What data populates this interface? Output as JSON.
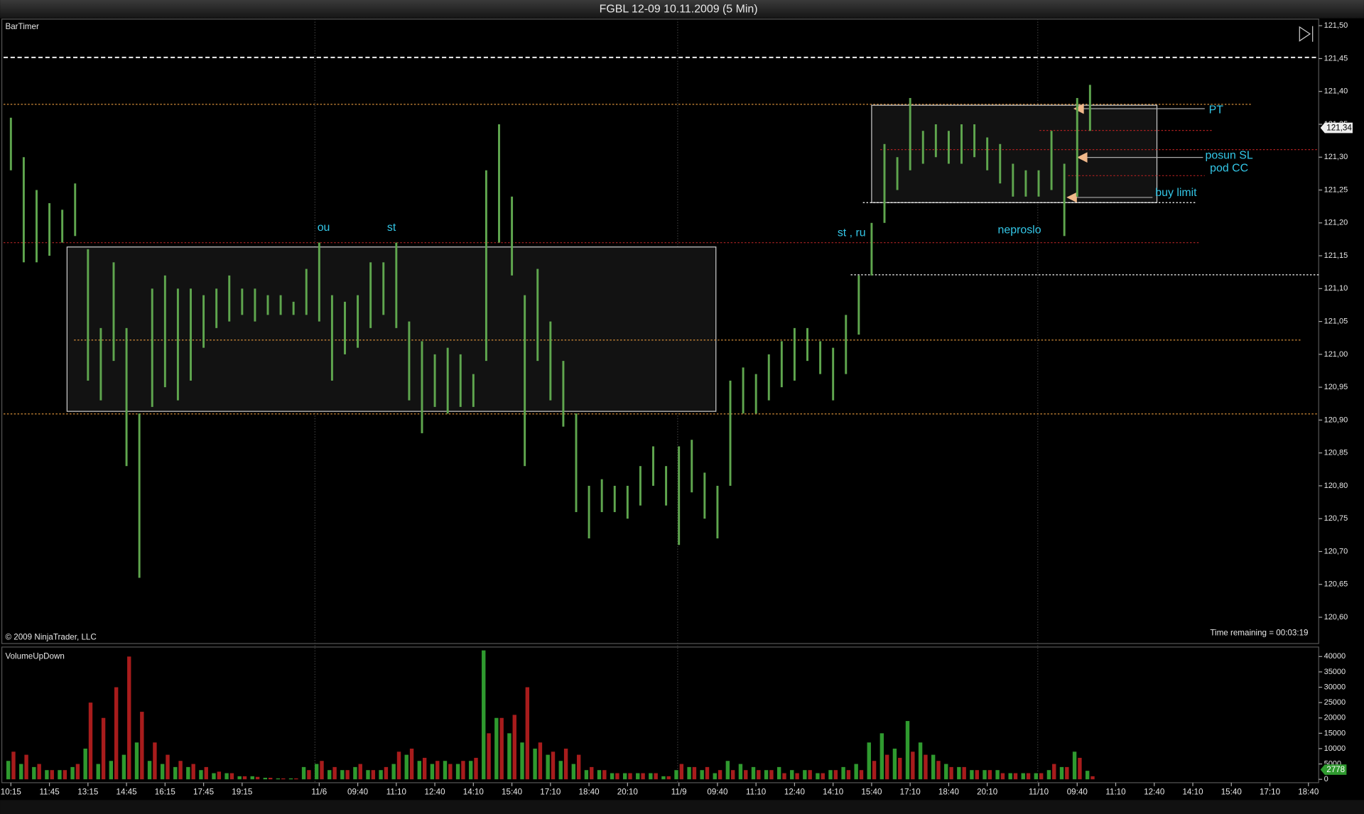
{
  "title": "FGBL 12-09  10.11.2009 (5 Min)",
  "chart_data": [
    {
      "type": "hilo",
      "indicator": "BarTimer",
      "copyright": "© 2009 NinjaTrader, LLC",
      "time_remaining": "Time remaining = 00:03:19",
      "last_label": "121,34",
      "color": "#5fa64e",
      "annotations": [
        "ou",
        "st",
        "st , ru",
        "neproslo",
        "PT",
        "posun SL",
        "pod CC",
        "buy limit"
      ],
      "high": [
        121.36,
        121.3,
        121.25,
        121.23,
        121.22,
        121.26,
        121.16,
        121.04,
        121.14,
        121.04,
        120.91,
        121.1,
        121.12,
        121.1,
        121.1,
        121.09,
        121.1,
        121.12,
        121.1,
        121.1,
        121.09,
        121.09,
        121.08,
        121.13,
        121.17,
        121.09,
        121.08,
        121.09,
        121.14,
        121.14,
        121.17,
        121.05,
        121.02,
        121.0,
        121.01,
        121.0,
        120.97,
        121.28,
        121.35,
        121.24,
        121.09,
        121.13,
        121.05,
        120.99,
        120.91,
        120.8,
        120.81,
        120.8,
        120.8,
        120.83,
        120.86,
        120.83,
        120.86,
        120.87,
        120.82,
        120.8,
        120.96,
        120.98,
        120.97,
        121.0,
        121.02,
        121.04,
        121.04,
        121.02,
        121.01,
        121.06,
        121.12,
        121.2,
        121.32,
        121.3,
        121.39,
        121.34,
        121.35,
        121.34,
        121.35,
        121.35,
        121.33,
        121.32,
        121.29,
        121.28,
        121.28,
        121.34,
        121.29,
        121.39,
        121.41
      ],
      "low": [
        121.28,
        121.14,
        121.14,
        121.15,
        121.17,
        121.18,
        120.96,
        120.93,
        120.99,
        120.83,
        120.66,
        120.92,
        120.95,
        120.93,
        120.96,
        121.01,
        121.04,
        121.05,
        121.06,
        121.05,
        121.06,
        121.06,
        121.06,
        121.06,
        121.05,
        120.96,
        121.0,
        121.01,
        121.04,
        121.06,
        121.04,
        120.93,
        120.88,
        120.92,
        120.91,
        120.92,
        120.92,
        120.99,
        121.17,
        121.12,
        120.83,
        120.99,
        120.93,
        120.89,
        120.76,
        120.72,
        120.76,
        120.76,
        120.75,
        120.77,
        120.8,
        120.77,
        120.71,
        120.79,
        120.75,
        120.72,
        120.8,
        120.91,
        120.91,
        120.93,
        120.95,
        120.96,
        120.99,
        120.97,
        120.93,
        120.97,
        121.03,
        121.12,
        121.2,
        121.25,
        121.28,
        121.29,
        121.3,
        121.29,
        121.29,
        121.3,
        121.28,
        121.26,
        121.24,
        121.24,
        121.24,
        121.25,
        121.18,
        121.24,
        121.34
      ],
      "xlim": [
        -0.3,
        101.8
      ],
      "ylim": [
        120.56,
        121.51
      ],
      "yticks": [
        {
          "value": 121.5,
          "label": "121,50"
        },
        {
          "value": 121.45,
          "label": "121,45"
        },
        {
          "value": 121.4,
          "label": "121,40"
        },
        {
          "value": 121.35,
          "label": "121,35"
        },
        {
          "value": 121.3,
          "label": "121,30"
        },
        {
          "value": 121.25,
          "label": "121,25"
        },
        {
          "value": 121.2,
          "label": "121,20"
        },
        {
          "value": 121.15,
          "label": "121,15"
        },
        {
          "value": 121.1,
          "label": "121,10"
        },
        {
          "value": 121.05,
          "label": "121,05"
        },
        {
          "value": 121.0,
          "label": "121,00"
        },
        {
          "value": 120.95,
          "label": "120,95"
        },
        {
          "value": 120.9,
          "label": "120,90"
        },
        {
          "value": 120.85,
          "label": "120,85"
        },
        {
          "value": 120.8,
          "label": "120,80"
        },
        {
          "value": 120.75,
          "label": "120,75"
        },
        {
          "value": 120.7,
          "label": "120,70"
        },
        {
          "value": 120.65,
          "label": "120,65"
        },
        {
          "value": 120.6,
          "label": "120,60"
        }
      ]
    },
    {
      "type": "bar",
      "title": "VolumeUpDown",
      "last_label": "2778",
      "series": [
        {
          "color": "#2f9a2f",
          "values": [
            6000,
            5000,
            4000,
            3000,
            3000,
            4000,
            10000,
            5000,
            6000,
            8000,
            12000,
            6000,
            5000,
            4000,
            4000,
            3000,
            2000,
            2000,
            1000,
            1000,
            500,
            300,
            300,
            4000,
            5000,
            3000,
            3000,
            4000,
            3000,
            3000,
            5000,
            8000,
            6000,
            5000,
            6000,
            5000,
            6000,
            42000,
            20000,
            15000,
            12000,
            10000,
            8000,
            6000,
            5000,
            3000,
            3000,
            2000,
            2000,
            2000,
            2000,
            1000,
            3000,
            4000,
            3000,
            2000,
            6000,
            5000,
            4000,
            3000,
            4000,
            3000,
            3000,
            2000,
            3000,
            4000,
            5000,
            12000,
            15000,
            10000,
            19000,
            12000,
            8000,
            5000,
            4000,
            3000,
            3000,
            3000,
            2000,
            2000,
            2000,
            3000,
            4000,
            9000,
            2778
          ]
        },
        {
          "color": "#a81c1c",
          "values": [
            9000,
            8000,
            5000,
            3000,
            3000,
            5000,
            25000,
            20000,
            30000,
            40000,
            22000,
            12000,
            8000,
            6000,
            5000,
            4000,
            2500,
            2000,
            1000,
            800,
            500,
            300,
            300,
            3000,
            6000,
            4000,
            3000,
            5000,
            3000,
            4000,
            9000,
            10000,
            7000,
            6000,
            5000,
            6000,
            7000,
            15000,
            20000,
            21000,
            30000,
            12000,
            9000,
            10000,
            8000,
            4000,
            3000,
            2000,
            2000,
            2000,
            2000,
            1000,
            5000,
            4000,
            4000,
            3000,
            3000,
            3000,
            3000,
            3000,
            2000,
            2000,
            3000,
            2000,
            3000,
            3000,
            3000,
            6000,
            8000,
            7000,
            9000,
            8000,
            6000,
            4000,
            4000,
            3000,
            3000,
            2000,
            2000,
            2000,
            2000,
            5000,
            4000,
            7000,
            1000
          ]
        }
      ],
      "xlim": [
        -0.3,
        101.8
      ],
      "ylim": [
        -1100,
        43100
      ],
      "yticks": [
        0,
        5000,
        10000,
        15000,
        20000,
        25000,
        30000,
        35000,
        40000
      ],
      "xticks": [
        {
          "value": 0,
          "label": "10:15"
        },
        {
          "value": 3,
          "label": "11:45"
        },
        {
          "value": 6,
          "label": "13:15"
        },
        {
          "value": 9,
          "label": "14:45"
        },
        {
          "value": 12,
          "label": "16:15"
        },
        {
          "value": 15,
          "label": "17:45"
        },
        {
          "value": 18,
          "label": "19:15"
        },
        {
          "value": 24,
          "label": "11/6"
        },
        {
          "value": 27,
          "label": "09:40"
        },
        {
          "value": 30,
          "label": "11:10"
        },
        {
          "value": 33,
          "label": "12:40"
        },
        {
          "value": 36,
          "label": "14:10"
        },
        {
          "value": 39,
          "label": "15:40"
        },
        {
          "value": 42,
          "label": "17:10"
        },
        {
          "value": 45,
          "label": "18:40"
        },
        {
          "value": 48,
          "label": "20:10"
        },
        {
          "value": 52,
          "label": "11/9"
        },
        {
          "value": 55,
          "label": "09:40"
        },
        {
          "value": 58,
          "label": "11:10"
        },
        {
          "value": 61,
          "label": "12:40"
        },
        {
          "value": 64,
          "label": "14:10"
        },
        {
          "value": 67,
          "label": "15:40"
        },
        {
          "value": 70,
          "label": "17:10"
        },
        {
          "value": 73,
          "label": "18:40"
        },
        {
          "value": 76,
          "label": "20:10"
        },
        {
          "value": 80,
          "label": "11/10"
        },
        {
          "value": 83,
          "label": "09:40"
        },
        {
          "value": 86,
          "label": "11:10"
        },
        {
          "value": 89,
          "label": "12:40"
        },
        {
          "value": 92,
          "label": "14:10"
        },
        {
          "value": 95,
          "label": "15:40"
        },
        {
          "value": 98,
          "label": "17:10"
        },
        {
          "value": 101,
          "label": "18:40"
        }
      ]
    }
  ]
}
